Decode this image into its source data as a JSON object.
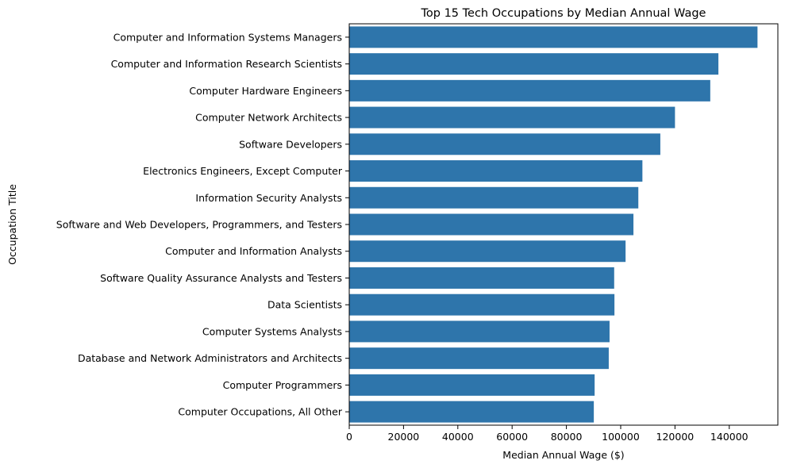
{
  "chart_data": {
    "type": "bar",
    "orientation": "horizontal",
    "title": "Top 15 Tech Occupations by Median Annual Wage",
    "xlabel": "Median Annual Wage ($)",
    "ylabel": "Occupation Title",
    "xlim": [
      0,
      157900
    ],
    "xticks": [
      0,
      20000,
      40000,
      60000,
      80000,
      100000,
      120000,
      140000
    ],
    "xtick_labels": [
      "0",
      "20000",
      "40000",
      "60000",
      "80000",
      "100000",
      "120000",
      "140000"
    ],
    "grid": false,
    "bar_color": "#2e75ab",
    "categories": [
      "Computer and Information Systems Managers",
      "Computer and Information Research Scientists",
      "Computer Hardware Engineers",
      "Computer Network Architects",
      "Software Developers",
      "Electronics Engineers, Except Computer",
      "Information Security Analysts",
      "Software and Web Developers, Programmers, and Testers",
      "Computer and Information Analysts",
      "Software Quality Assurance Analysts and Testers",
      "Data Scientists",
      "Computer Systems Analysts",
      "Database and Network Administrators and Architects",
      "Computer Programmers",
      "Computer Occupations, All Other"
    ],
    "values": [
      150400,
      136000,
      133000,
      120000,
      114600,
      108000,
      106500,
      104700,
      101800,
      97600,
      97700,
      95900,
      95600,
      90400,
      90100
    ]
  }
}
